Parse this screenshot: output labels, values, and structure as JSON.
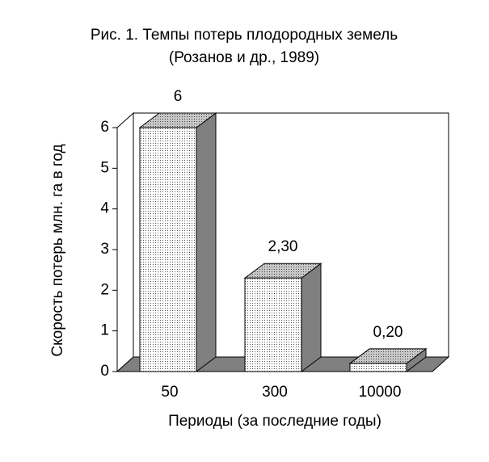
{
  "chart_data": {
    "type": "bar3d",
    "title": "Рис. 1. Темпы потерь плодородных земель",
    "subtitle": "(Розанов и др., 1989)",
    "x_label": "Периоды (за последние годы)",
    "y_label": "Скорость потерь млн. га в год",
    "categories": [
      "50",
      "300",
      "10000"
    ],
    "values": [
      6,
      2.3,
      0.2
    ],
    "value_labels": [
      "6",
      "2,30",
      "0,20"
    ],
    "ylim": [
      0,
      6
    ],
    "yticks": [
      0,
      1,
      2,
      3,
      4,
      5,
      6
    ]
  }
}
